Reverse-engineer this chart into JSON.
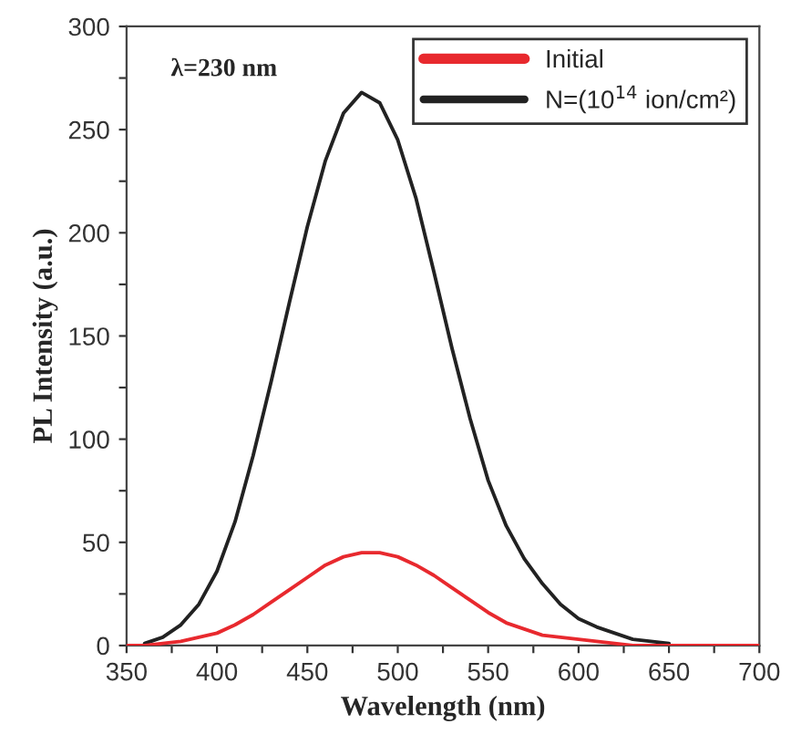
{
  "chart_data": {
    "type": "line",
    "xlabel": "Wavelength (nm)",
    "ylabel": "PL Intensity (a.u.)",
    "annotations": [
      "λ=230 nm"
    ],
    "x": [
      350,
      360,
      370,
      380,
      390,
      400,
      410,
      420,
      430,
      440,
      450,
      460,
      470,
      480,
      490,
      500,
      510,
      520,
      530,
      540,
      550,
      560,
      570,
      580,
      590,
      600,
      610,
      620,
      630,
      640,
      650,
      660,
      700
    ],
    "series": [
      {
        "name": "Initial",
        "color": "#e8292e",
        "values": [
          0,
          0,
          1,
          2,
          4,
          6,
          10,
          15,
          21,
          27,
          33,
          39,
          43,
          45,
          45,
          43,
          39,
          34,
          28,
          22,
          16,
          11,
          8,
          5,
          4,
          3,
          2,
          1,
          0,
          0,
          0,
          0,
          0
        ]
      },
      {
        "name": "N=(10$^{14}$ ion/cm²)",
        "color": "#222222",
        "values": [
          null,
          1,
          4,
          10,
          20,
          36,
          60,
          92,
          128,
          166,
          203,
          235,
          258,
          268,
          263,
          245,
          217,
          181,
          144,
          110,
          80,
          58,
          42,
          30,
          20,
          13,
          9,
          6,
          3,
          2,
          1,
          null,
          null
        ]
      }
    ],
    "xlim": [
      350,
      700
    ],
    "ylim": [
      0,
      300
    ],
    "xticks": [
      350,
      {
        "value": 375,
        "label": null
      },
      400,
      {
        "value": 425,
        "label": null
      },
      450,
      {
        "value": 475,
        "label": null
      },
      500,
      {
        "value": 525,
        "label": null
      },
      550,
      {
        "value": 575,
        "label": null
      },
      600,
      {
        "value": 625,
        "label": null
      },
      650,
      {
        "value": 675,
        "label": null
      },
      700
    ],
    "yticks": [
      0,
      {
        "value": 25,
        "label": null
      },
      50,
      {
        "value": 75,
        "label": null
      },
      100,
      {
        "value": 125,
        "label": null
      },
      150,
      {
        "value": 175,
        "label": null
      },
      200,
      {
        "value": 225,
        "label": null
      },
      250,
      {
        "value": 275,
        "label": null
      },
      300
    ],
    "legend": "top right",
    "grid": false,
    "marker": "none",
    "line_style": "solid"
  }
}
